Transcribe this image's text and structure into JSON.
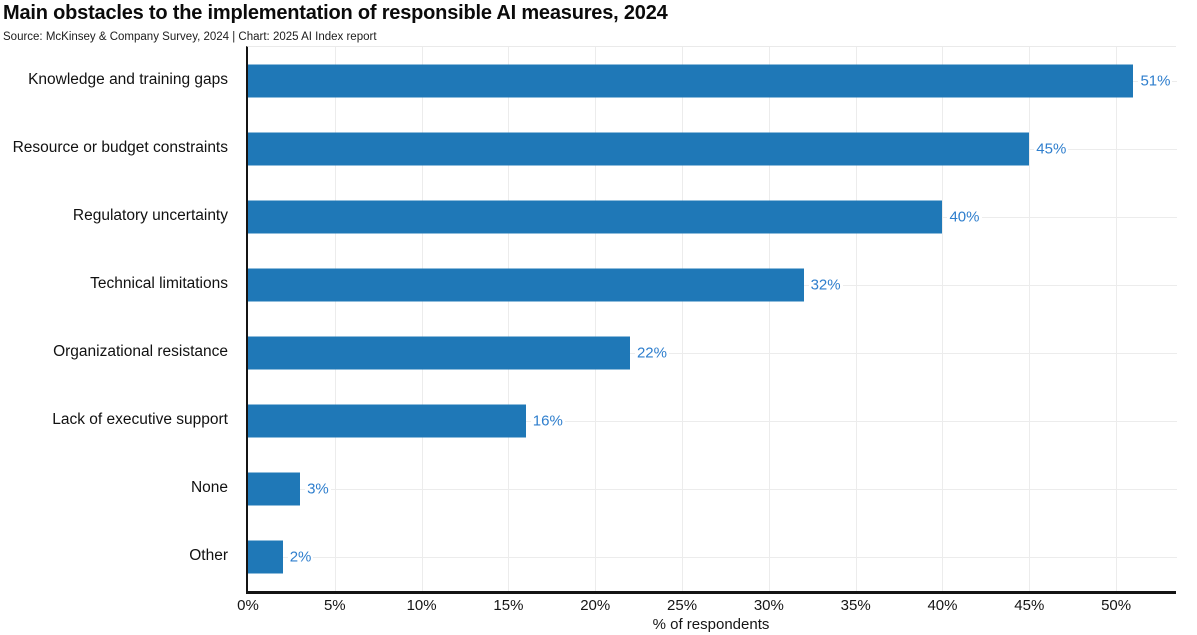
{
  "header": {
    "title": "Main obstacles to the implementation of responsible AI measures, 2024",
    "source": "Source: McKinsey & Company Survey, 2024 | Chart: 2025 AI Index report"
  },
  "chart_data": {
    "type": "bar",
    "orientation": "horizontal",
    "title": "Main obstacles to the implementation of responsible AI measures, 2024",
    "source": "Source: McKinsey & Company Survey, 2024 | Chart: 2025 AI Index report",
    "categories": [
      "Knowledge and training gaps",
      "Resource or budget constraints",
      "Regulatory uncertainty",
      "Technical limitations",
      "Organizational resistance",
      "Lack of executive support",
      "None",
      "Other"
    ],
    "values": [
      51,
      45,
      40,
      32,
      22,
      16,
      3,
      2
    ],
    "value_labels": [
      "51%",
      "45%",
      "40%",
      "32%",
      "22%",
      "16%",
      "3%",
      "2%"
    ],
    "xlabel": "% of respondents",
    "ylabel": "",
    "x_tick_values": [
      0,
      5,
      10,
      15,
      20,
      25,
      30,
      35,
      40,
      45,
      50
    ],
    "x_tick_labels": [
      "0%",
      "5%",
      "10%",
      "15%",
      "20%",
      "25%",
      "30%",
      "35%",
      "40%",
      "45%",
      "50%"
    ],
    "xlim": [
      0,
      53.45
    ],
    "grid": true,
    "legend": false,
    "colors": {
      "bar": "#1f78b7",
      "value_label": "#2e7ecd",
      "grid": "#ececec",
      "axis": "#141414",
      "text": "#151515"
    }
  }
}
